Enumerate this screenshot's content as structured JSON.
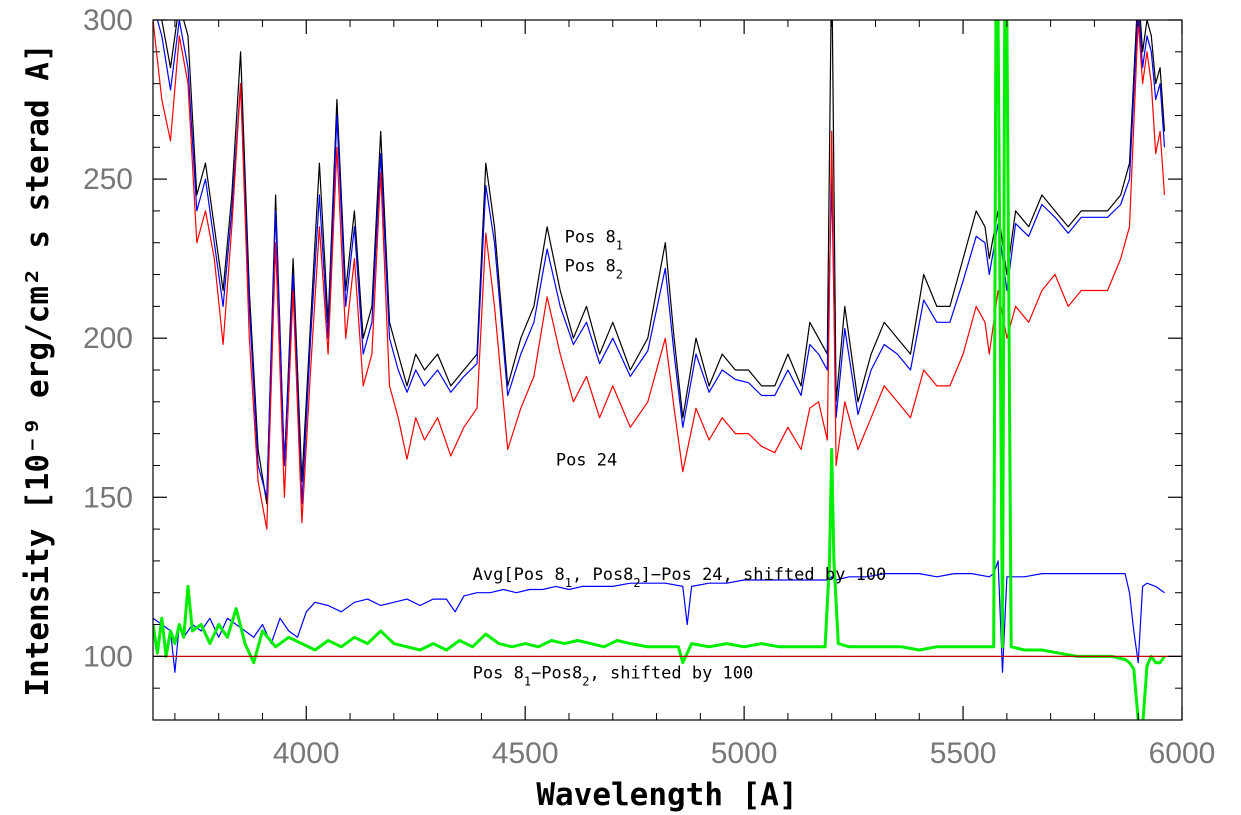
{
  "chart_data": {
    "type": "line",
    "xlabel": "Wavelength [A]",
    "ylabel": "Intensity [10⁻⁹ erg/cm² s sterad A]",
    "xlim": [
      3650,
      6000
    ],
    "ylim": [
      80,
      300
    ],
    "xticks": [
      4000,
      4500,
      5000,
      5500,
      6000
    ],
    "yticks": [
      100,
      150,
      200,
      250,
      300
    ],
    "grid": false,
    "annotations": [
      {
        "text": "Pos 8",
        "sub": "1",
        "tail": "",
        "x": 4590,
        "y": 230
      },
      {
        "text": "Pos 8",
        "sub": "2",
        "tail": "",
        "x": 4590,
        "y": 221
      },
      {
        "text": "Pos 24",
        "sub": "",
        "tail": "",
        "x": 4570,
        "y": 160
      },
      {
        "text": "Avg[Pos 8",
        "sub": "1",
        "tail": ", Pos8",
        "sub2": "2",
        "tail2": "]−Pos 24, shifted by 100",
        "x": 4380,
        "y": 124
      },
      {
        "text": "Pos 8",
        "sub": "1",
        "tail": "−Pos8",
        "sub2": "2",
        "tail2": ", shifted by 100",
        "x": 4380,
        "y": 93
      }
    ],
    "series": [
      {
        "name": "Pos 8₁",
        "color": "#000000",
        "width": 1.2,
        "x": [
          3650,
          3670,
          3690,
          3710,
          3730,
          3750,
          3770,
          3790,
          3810,
          3830,
          3850,
          3870,
          3890,
          3910,
          3930,
          3950,
          3970,
          3990,
          4010,
          4030,
          4050,
          4070,
          4090,
          4110,
          4130,
          4150,
          4170,
          4190,
          4210,
          4230,
          4250,
          4270,
          4300,
          4330,
          4360,
          4390,
          4410,
          4430,
          4460,
          4490,
          4520,
          4550,
          4580,
          4610,
          4640,
          4670,
          4700,
          4740,
          4780,
          4820,
          4840,
          4860,
          4890,
          4920,
          4950,
          4980,
          5010,
          5040,
          5070,
          5100,
          5130,
          5150,
          5170,
          5190,
          5200,
          5210,
          5230,
          5260,
          5290,
          5320,
          5350,
          5380,
          5410,
          5440,
          5470,
          5500,
          5530,
          5550,
          5560,
          5580,
          5600,
          5620,
          5650,
          5680,
          5710,
          5740,
          5770,
          5800,
          5830,
          5860,
          5880,
          5900,
          5910,
          5920,
          5930,
          5940,
          5950,
          5960
        ],
        "y": [
          310,
          300,
          285,
          305,
          295,
          245,
          255,
          235,
          215,
          245,
          290,
          215,
          165,
          148,
          245,
          160,
          225,
          155,
          205,
          255,
          205,
          275,
          215,
          240,
          200,
          210,
          265,
          205,
          195,
          185,
          195,
          190,
          195,
          185,
          190,
          195,
          255,
          235,
          185,
          200,
          210,
          235,
          215,
          200,
          210,
          195,
          205,
          190,
          200,
          230,
          200,
          175,
          200,
          185,
          195,
          190,
          190,
          185,
          185,
          195,
          185,
          205,
          200,
          195,
          320,
          180,
          210,
          180,
          195,
          205,
          200,
          195,
          220,
          210,
          210,
          225,
          240,
          235,
          225,
          240,
          220,
          240,
          235,
          245,
          240,
          235,
          240,
          240,
          240,
          245,
          255,
          310,
          290,
          300,
          295,
          280,
          285,
          265
        ]
      },
      {
        "name": "Pos 8₂",
        "color": "#0000ff",
        "width": 1.2,
        "x": [
          3650,
          3670,
          3690,
          3710,
          3730,
          3750,
          3770,
          3790,
          3810,
          3830,
          3850,
          3870,
          3890,
          3910,
          3930,
          3950,
          3970,
          3990,
          4010,
          4030,
          4050,
          4070,
          4090,
          4110,
          4130,
          4150,
          4170,
          4190,
          4210,
          4230,
          4250,
          4270,
          4300,
          4330,
          4360,
          4390,
          4410,
          4430,
          4460,
          4490,
          4520,
          4550,
          4580,
          4610,
          4640,
          4670,
          4700,
          4740,
          4780,
          4820,
          4840,
          4860,
          4890,
          4920,
          4950,
          4980,
          5010,
          5040,
          5070,
          5100,
          5130,
          5150,
          5170,
          5190,
          5200,
          5210,
          5230,
          5260,
          5290,
          5320,
          5350,
          5380,
          5410,
          5440,
          5470,
          5500,
          5530,
          5550,
          5560,
          5580,
          5600,
          5620,
          5650,
          5680,
          5710,
          5740,
          5770,
          5800,
          5830,
          5860,
          5880,
          5900,
          5910,
          5920,
          5930,
          5940,
          5950,
          5960
        ],
        "y": [
          305,
          295,
          278,
          300,
          285,
          240,
          250,
          230,
          210,
          240,
          280,
          210,
          160,
          150,
          240,
          160,
          220,
          148,
          200,
          245,
          200,
          270,
          210,
          235,
          195,
          205,
          258,
          200,
          190,
          183,
          190,
          185,
          190,
          183,
          188,
          192,
          248,
          230,
          182,
          195,
          205,
          228,
          210,
          198,
          205,
          192,
          200,
          188,
          196,
          222,
          195,
          172,
          195,
          183,
          190,
          187,
          186,
          182,
          182,
          190,
          182,
          198,
          195,
          190,
          250,
          175,
          203,
          176,
          190,
          198,
          195,
          190,
          212,
          205,
          205,
          218,
          232,
          230,
          220,
          236,
          215,
          236,
          232,
          242,
          238,
          233,
          238,
          238,
          238,
          242,
          250,
          305,
          285,
          295,
          290,
          275,
          280,
          260
        ]
      },
      {
        "name": "Pos 24",
        "color": "#ff0000",
        "width": 1.2,
        "x": [
          3650,
          3670,
          3690,
          3710,
          3730,
          3750,
          3770,
          3790,
          3810,
          3830,
          3850,
          3870,
          3890,
          3910,
          3930,
          3950,
          3970,
          3990,
          4010,
          4030,
          4050,
          4070,
          4090,
          4110,
          4130,
          4150,
          4170,
          4190,
          4210,
          4230,
          4250,
          4270,
          4300,
          4330,
          4360,
          4390,
          4410,
          4430,
          4460,
          4490,
          4520,
          4550,
          4580,
          4610,
          4640,
          4670,
          4700,
          4740,
          4780,
          4820,
          4840,
          4860,
          4890,
          4920,
          4950,
          4980,
          5010,
          5040,
          5070,
          5100,
          5130,
          5150,
          5170,
          5190,
          5200,
          5210,
          5230,
          5260,
          5290,
          5320,
          5350,
          5380,
          5410,
          5440,
          5470,
          5500,
          5530,
          5550,
          5560,
          5580,
          5600,
          5620,
          5650,
          5680,
          5710,
          5740,
          5770,
          5800,
          5830,
          5860,
          5880,
          5900,
          5910,
          5920,
          5930,
          5940,
          5950,
          5960
        ],
        "y": [
          300,
          275,
          262,
          295,
          280,
          230,
          240,
          225,
          198,
          235,
          280,
          200,
          155,
          140,
          230,
          150,
          215,
          142,
          190,
          235,
          195,
          260,
          200,
          225,
          185,
          195,
          252,
          185,
          175,
          162,
          175,
          168,
          175,
          163,
          172,
          178,
          233,
          210,
          165,
          178,
          188,
          213,
          195,
          180,
          188,
          175,
          185,
          172,
          180,
          200,
          178,
          158,
          178,
          168,
          175,
          170,
          170,
          166,
          164,
          172,
          165,
          178,
          180,
          168,
          265,
          160,
          180,
          165,
          175,
          185,
          180,
          175,
          190,
          185,
          185,
          195,
          210,
          205,
          195,
          215,
          200,
          210,
          205,
          215,
          220,
          210,
          215,
          215,
          215,
          225,
          235,
          300,
          280,
          290,
          280,
          258,
          265,
          245
        ]
      },
      {
        "name": "Avg[Pos 8₁, Pos8₂]−Pos 24",
        "color": "#0000ff",
        "width": 1.2,
        "x": [
          3650,
          3670,
          3690,
          3700,
          3710,
          3720,
          3740,
          3760,
          3780,
          3800,
          3820,
          3840,
          3860,
          3880,
          3900,
          3920,
          3940,
          3960,
          3980,
          4000,
          4020,
          4050,
          4080,
          4110,
          4140,
          4170,
          4200,
          4230,
          4260,
          4290,
          4320,
          4340,
          4360,
          4390,
          4420,
          4450,
          4480,
          4510,
          4540,
          4570,
          4600,
          4630,
          4660,
          4700,
          4740,
          4780,
          4820,
          4860,
          4870,
          4880,
          4920,
          4960,
          5000,
          5040,
          5080,
          5120,
          5160,
          5190,
          5200,
          5210,
          5240,
          5280,
          5320,
          5360,
          5400,
          5440,
          5480,
          5520,
          5560,
          5570,
          5580,
          5590,
          5600,
          5640,
          5680,
          5720,
          5760,
          5800,
          5840,
          5870,
          5880,
          5890,
          5900,
          5910,
          5920,
          5940,
          5960
        ],
        "y": [
          112,
          110,
          108,
          95,
          110,
          106,
          110,
          108,
          112,
          106,
          112,
          110,
          108,
          106,
          110,
          104,
          112,
          108,
          106,
          114,
          117,
          116,
          114,
          117,
          118,
          116,
          117,
          118,
          116,
          118,
          118,
          114,
          119,
          120,
          120,
          121,
          120,
          121,
          121,
          122,
          121,
          122,
          122,
          122,
          123,
          123,
          123,
          122,
          110,
          122,
          123,
          123,
          124,
          124,
          124,
          124,
          124,
          124,
          125,
          124,
          125,
          125,
          126,
          126,
          126,
          125,
          126,
          126,
          125,
          126,
          130,
          95,
          125,
          125,
          126,
          126,
          126,
          126,
          126,
          126,
          120,
          108,
          98,
          122,
          123,
          122,
          120
        ]
      },
      {
        "name": "Pos 8₁−Pos8₂",
        "color": "#00ee00",
        "width": 3,
        "x": [
          3650,
          3660,
          3670,
          3680,
          3690,
          3700,
          3710,
          3720,
          3730,
          3740,
          3760,
          3780,
          3800,
          3820,
          3840,
          3860,
          3880,
          3900,
          3930,
          3960,
          3990,
          4020,
          4050,
          4080,
          4110,
          4140,
          4170,
          4200,
          4230,
          4260,
          4290,
          4320,
          4350,
          4380,
          4410,
          4440,
          4470,
          4500,
          4530,
          4560,
          4590,
          4620,
          4650,
          4680,
          4710,
          4740,
          4780,
          4820,
          4850,
          4860,
          4880,
          4920,
          4960,
          5000,
          5040,
          5080,
          5120,
          5160,
          5185,
          5195,
          5200,
          5205,
          5215,
          5240,
          5280,
          5320,
          5360,
          5400,
          5440,
          5480,
          5520,
          5560,
          5570,
          5575,
          5580,
          5590,
          5595,
          5600,
          5610,
          5640,
          5680,
          5720,
          5760,
          5800,
          5840,
          5870,
          5880,
          5890,
          5900,
          5910,
          5920,
          5930,
          5940,
          5950,
          5960
        ],
        "y": [
          110,
          101,
          112,
          100,
          108,
          104,
          110,
          106,
          122,
          108,
          110,
          104,
          110,
          106,
          115,
          104,
          98,
          108,
          103,
          106,
          104,
          102,
          105,
          103,
          106,
          104,
          108,
          104,
          103,
          102,
          104,
          102,
          105,
          103,
          107,
          104,
          103,
          104,
          103,
          105,
          104,
          105,
          104,
          103,
          105,
          104,
          103,
          103,
          103,
          98,
          104,
          103,
          104,
          103,
          104,
          103,
          103,
          103,
          103,
          130,
          165,
          130,
          104,
          103,
          103,
          103,
          103,
          102,
          103,
          103,
          103,
          103,
          103,
          300,
          300,
          103,
          300,
          300,
          103,
          102,
          102,
          101,
          100,
          100,
          100,
          99,
          98,
          96,
          80,
          78,
          97,
          100,
          98,
          98,
          100
        ]
      },
      {
        "name": "",
        "color": "#c00000",
        "width": 1.2,
        "x": [
          3650,
          6000
        ],
        "y": [
          100,
          100
        ]
      }
    ]
  }
}
